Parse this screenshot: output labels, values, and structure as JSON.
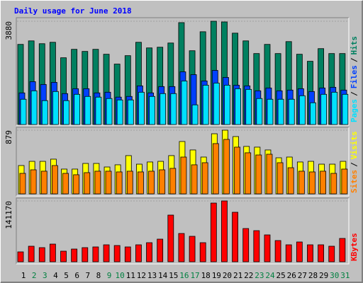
{
  "title": "Daily usage for June 2018",
  "legend_separator": "/",
  "chart_data": [
    {
      "type": "bar",
      "categories": [
        "1",
        "2",
        "3",
        "4",
        "5",
        "6",
        "7",
        "8",
        "9",
        "10",
        "11",
        "12",
        "13",
        "14",
        "15",
        "16",
        "17",
        "18",
        "19",
        "20",
        "21",
        "22",
        "23",
        "24",
        "25",
        "26",
        "27",
        "28",
        "29",
        "30",
        "31"
      ],
      "category_colors": [
        "#000000",
        "#008040",
        "#008040",
        "#000000",
        "#000000",
        "#000000",
        "#000000",
        "#000000",
        "#008040",
        "#008040",
        "#000000",
        "#000000",
        "#000000",
        "#000000",
        "#000000",
        "#008040",
        "#008040",
        "#000000",
        "#000000",
        "#000000",
        "#000000",
        "#000000",
        "#008040",
        "#008040",
        "#000000",
        "#000000",
        "#000000",
        "#000000",
        "#000000",
        "#008040",
        "#008040"
      ],
      "ylim": [
        0,
        3880
      ],
      "yticks": [
        3880
      ],
      "series": [
        {
          "name": "Hits",
          "color": "#008060",
          "values": [
            3010,
            3142,
            3036,
            3089,
            2508,
            2825,
            2746,
            2825,
            2640,
            2270,
            2587,
            3089,
            2878,
            2904,
            3062,
            3828,
            2772,
            3485,
            3880,
            3854,
            3432,
            3142,
            2666,
            3010,
            2666,
            3115,
            2640,
            2376,
            2851,
            2666,
            2666
          ]
        },
        {
          "name": "Files",
          "color": "#0040ff",
          "values": [
            1188,
            1610,
            1505,
            1584,
            1162,
            1346,
            1346,
            1188,
            1214,
            1030,
            1056,
            1452,
            1188,
            1426,
            1426,
            1980,
            1874,
            1637,
            2033,
            1769,
            1478,
            1452,
            1267,
            1373,
            1267,
            1294,
            1346,
            1241,
            1373,
            1399,
            1294
          ]
        },
        {
          "name": "Pages",
          "color": "#00e0ff",
          "values": [
            950,
            1267,
            898,
            1241,
            898,
            1135,
            1056,
            1030,
            977,
            924,
            924,
            1214,
            1056,
            1162,
            1162,
            1637,
            739,
            1478,
            1558,
            1478,
            1346,
            1320,
            977,
            950,
            950,
            950,
            1082,
            818,
            1135,
            1214,
            1135
          ]
        }
      ]
    },
    {
      "type": "bar",
      "ylim": [
        0,
        879
      ],
      "yticks": [
        879
      ],
      "series": [
        {
          "name": "Visits",
          "color": "#ffff00",
          "values": [
            391,
            449,
            449,
            479,
            342,
            342,
            420,
            420,
            371,
            401,
            528,
            410,
            440,
            449,
            528,
            723,
            606,
            508,
            830,
            879,
            791,
            655,
            645,
            606,
            498,
            508,
            440,
            449,
            410,
            410,
            449
          ]
        },
        {
          "name": "Sites",
          "color": "#ff8000",
          "values": [
            283,
            332,
            313,
            391,
            283,
            264,
            293,
            313,
            313,
            303,
            313,
            303,
            313,
            332,
            352,
            508,
            401,
            430,
            694,
            752,
            645,
            567,
            537,
            547,
            430,
            361,
            313,
            303,
            313,
            283,
            342
          ]
        }
      ]
    },
    {
      "type": "bar",
      "ylim": [
        0,
        141170
      ],
      "yticks": [
        141170
      ],
      "series": [
        {
          "name": "KBytes",
          "color": "#ff0000",
          "values": [
            22981,
            36113,
            32830,
            41038,
            24623,
            29547,
            32830,
            34472,
            39396,
            37755,
            34472,
            39396,
            44321,
            52528,
            108339,
            65660,
            59094,
            44321,
            136245,
            141170,
            114905,
            77151,
            72226,
            62377,
            49245,
            39396,
            45962,
            39396,
            39396,
            36113,
            54170
          ]
        }
      ]
    }
  ]
}
